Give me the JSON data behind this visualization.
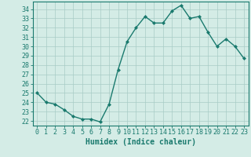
{
  "x": [
    0,
    1,
    2,
    3,
    4,
    5,
    6,
    7,
    8,
    9,
    10,
    11,
    12,
    13,
    14,
    15,
    16,
    17,
    18,
    19,
    20,
    21,
    22,
    23
  ],
  "y": [
    25.0,
    24.0,
    23.8,
    23.2,
    22.5,
    22.2,
    22.2,
    21.9,
    23.8,
    27.5,
    30.5,
    32.0,
    33.2,
    32.5,
    32.5,
    33.8,
    34.4,
    33.0,
    33.2,
    31.5,
    30.0,
    30.8,
    30.0,
    28.7
  ],
  "line_color": "#1a7a6e",
  "marker": "D",
  "marker_size": 2.0,
  "bg_color": "#d4ece6",
  "grid_color": "#a8ccc6",
  "xlabel": "Humidex (Indice chaleur)",
  "xlim": [
    -0.5,
    23.5
  ],
  "ylim": [
    21.5,
    34.8
  ],
  "yticks": [
    22,
    23,
    24,
    25,
    26,
    27,
    28,
    29,
    30,
    31,
    32,
    33,
    34
  ],
  "xticks": [
    0,
    1,
    2,
    3,
    4,
    5,
    6,
    7,
    8,
    9,
    10,
    11,
    12,
    13,
    14,
    15,
    16,
    17,
    18,
    19,
    20,
    21,
    22,
    23
  ],
  "xlabel_fontsize": 7,
  "tick_fontsize": 6,
  "line_width": 1.0,
  "axis_color": "#1a7a6e"
}
